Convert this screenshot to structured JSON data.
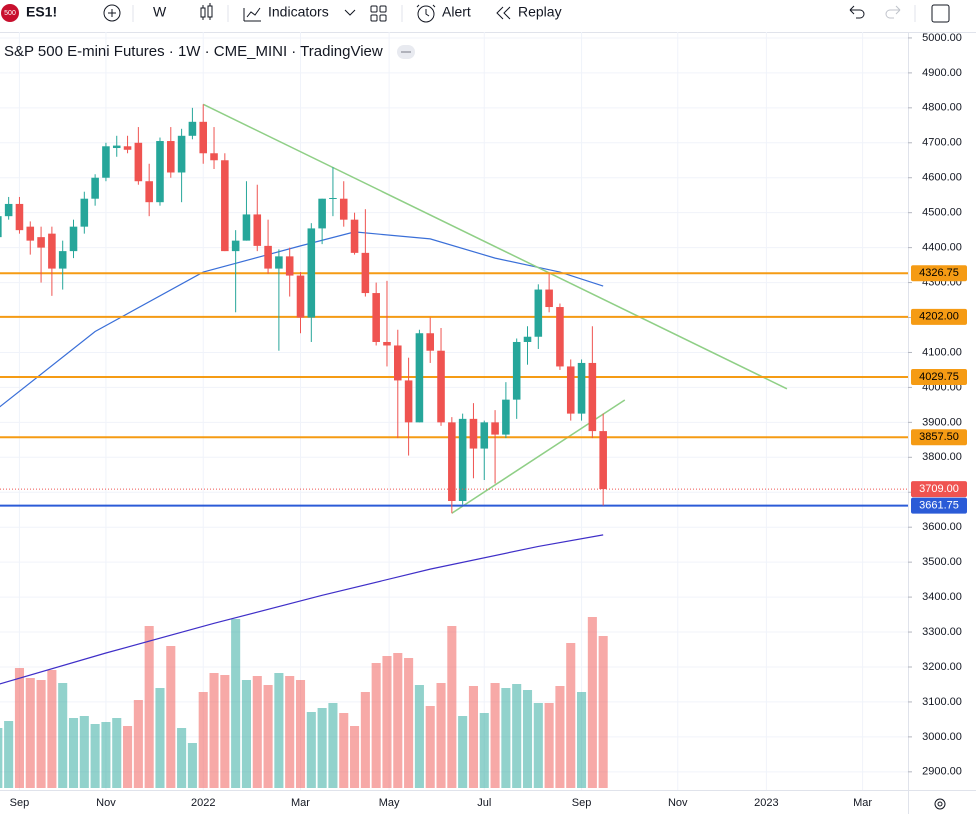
{
  "toolbar": {
    "badge": "500",
    "symbol": "ES1!",
    "interval": "W",
    "indicators": "Indicators",
    "alert": "Alert",
    "replay": "Replay"
  },
  "chart_data": {
    "type": "candlestick",
    "title": "S&P 500 E-mini Futures · 1W · CME_MINI · TradingView",
    "up_color": "#26a69a",
    "down_color": "#ef5350",
    "open": [
      4430,
      4490,
      4525,
      4460,
      4430,
      4440,
      4340,
      4390,
      4460,
      4540,
      4600,
      4685,
      4690,
      4700,
      4590,
      4530,
      4705,
      4615,
      4720,
      4760,
      4670,
      4650,
      4390,
      4420,
      4495,
      4405,
      4340,
      4375,
      4320,
      4200,
      4455,
      4540,
      4540,
      4480,
      4385,
      4270,
      4130,
      4120,
      4020,
      3900,
      4155,
      4105,
      3900,
      3675,
      3910,
      3825,
      3900,
      3865,
      3965,
      4130,
      4145,
      4280,
      4230,
      4060,
      3925,
      4070,
      3875
    ],
    "high": [
      4505,
      4545,
      4545,
      4475,
      4460,
      4460,
      4420,
      4480,
      4560,
      4610,
      4700,
      4720,
      4720,
      4745,
      4640,
      4715,
      4745,
      4740,
      4800,
      4810,
      4745,
      4670,
      4450,
      4590,
      4580,
      4480,
      4395,
      4400,
      4330,
      4470,
      4540,
      4630,
      4590,
      4500,
      4510,
      4300,
      4305,
      4165,
      4085,
      4165,
      4200,
      4170,
      3915,
      3925,
      3955,
      3905,
      3935,
      4015,
      4140,
      4175,
      4295,
      4325,
      4240,
      4080,
      4080,
      4175,
      3925
    ],
    "low": [
      4410,
      4480,
      4440,
      4380,
      4300,
      4262,
      4280,
      4370,
      4440,
      4520,
      4590,
      4660,
      4670,
      4580,
      4490,
      4520,
      4600,
      4530,
      4710,
      4640,
      4625,
      4390,
      4215,
      4420,
      4390,
      4325,
      4105,
      4260,
      4155,
      4130,
      4410,
      4490,
      4460,
      4380,
      4260,
      4120,
      4060,
      3855,
      3805,
      3900,
      4070,
      3890,
      3640,
      3665,
      3740,
      3735,
      3725,
      3855,
      3910,
      4065,
      4110,
      4215,
      4050,
      3905,
      3905,
      3855,
      3662
    ],
    "close": [
      4490,
      4525,
      4450,
      4420,
      4400,
      4340,
      4390,
      4460,
      4540,
      4600,
      4690,
      4692,
      4680,
      4590,
      4530,
      4705,
      4615,
      4720,
      4760,
      4670,
      4650,
      4390,
      4420,
      4495,
      4405,
      4340,
      4375,
      4320,
      4200,
      4455,
      4540,
      4542,
      4480,
      4385,
      4270,
      4130,
      4120,
      4020,
      3900,
      4155,
      4105,
      3900,
      3675,
      3910,
      3825,
      3900,
      3865,
      3965,
      4130,
      4145,
      4280,
      4230,
      4060,
      3925,
      4070,
      3875,
      3709
    ],
    "volume": [
      60,
      67,
      120,
      110,
      108,
      118,
      105,
      70,
      72,
      64,
      66,
      70,
      62,
      88,
      162,
      100,
      142,
      60,
      45,
      96,
      115,
      113,
      169,
      108,
      112,
      103,
      115,
      112,
      108,
      76,
      80,
      85,
      75,
      62,
      96,
      125,
      132,
      135,
      130,
      103,
      82,
      105,
      162,
      72,
      102,
      75,
      105,
      100,
      104,
      98,
      85,
      85,
      102,
      145,
      96,
      171,
      152
    ],
    "moving_averages": [
      {
        "color": "#3a6fd8",
        "x": [
          0,
          9,
          19,
          28,
          33,
          40,
          46,
          52,
          56
        ],
        "values": [
          3940,
          4160,
          4330,
          4405,
          4445,
          4425,
          4370,
          4330,
          4290
        ]
      },
      {
        "color": "#3f2fc8",
        "x": [
          0,
          10,
          20,
          30,
          40,
          50,
          56
        ],
        "values": [
          3150,
          3240,
          3325,
          3405,
          3480,
          3545,
          3578
        ]
      }
    ],
    "trendlines": [
      {
        "color": "#8fcf86",
        "x": [
          19,
          73
        ],
        "values": [
          4810,
          3996
        ]
      },
      {
        "color": "#8fcf86",
        "x": [
          42,
          58
        ],
        "values": [
          3640,
          3964
        ]
      }
    ],
    "hlines": [
      {
        "value": 4326.75,
        "label": "4326.75",
        "color": "#f59b14"
      },
      {
        "value": 4202.0,
        "label": "4202.00",
        "color": "#f59b14"
      },
      {
        "value": 4029.75,
        "label": "4029.75",
        "color": "#f59b14"
      },
      {
        "value": 3857.5,
        "label": "3857.50",
        "color": "#f59b14"
      },
      {
        "value": 3661.75,
        "label": "3661.75",
        "color": "#2b5bd7"
      }
    ],
    "last_price": {
      "value": 3709,
      "label": "3709.00",
      "color": "#ef5350"
    },
    "xlim": [
      0.2,
      84.2
    ],
    "xticks": [
      {
        "value": 2,
        "label": "Sep"
      },
      {
        "value": 10,
        "label": "Nov"
      },
      {
        "value": 19,
        "label": "2022"
      },
      {
        "value": 28,
        "label": "Mar"
      },
      {
        "value": 36.2,
        "label": "May"
      },
      {
        "value": 45,
        "label": "Jul"
      },
      {
        "value": 54,
        "label": "Sep"
      },
      {
        "value": 62.9,
        "label": "Nov"
      },
      {
        "value": 71.1,
        "label": "2023"
      },
      {
        "value": 80,
        "label": "Mar"
      }
    ],
    "ylim": [
      2848,
      5017
    ],
    "yticks": [
      {
        "value": 5000,
        "label": "5000.00"
      },
      {
        "value": 4900,
        "label": "4900.00"
      },
      {
        "value": 4800,
        "label": "4800.00"
      },
      {
        "value": 4700,
        "label": "4700.00"
      },
      {
        "value": 4600,
        "label": "4600.00"
      },
      {
        "value": 4500,
        "label": "4500.00"
      },
      {
        "value": 4400,
        "label": "4400.00"
      },
      {
        "value": 4300,
        "label": "4300.00"
      },
      {
        "value": 4200,
        "label": "4200.00"
      },
      {
        "value": 4100,
        "label": "4100.00"
      },
      {
        "value": 4000,
        "label": "4000.00"
      },
      {
        "value": 3900,
        "label": "3900.00"
      },
      {
        "value": 3800,
        "label": "3800.00"
      },
      {
        "value": 3700,
        "label": "3700.00"
      },
      {
        "value": 3600,
        "label": "3600.00"
      },
      {
        "value": 3500,
        "label": "3500.00"
      },
      {
        "value": 3400,
        "label": "3400.00"
      },
      {
        "value": 3300,
        "label": "3300.00"
      },
      {
        "value": 3200,
        "label": "3200.00"
      },
      {
        "value": 3100,
        "label": "3100.00"
      },
      {
        "value": 3000,
        "label": "3000.00"
      },
      {
        "value": 2900,
        "label": "2900.00"
      }
    ],
    "grid": true
  }
}
